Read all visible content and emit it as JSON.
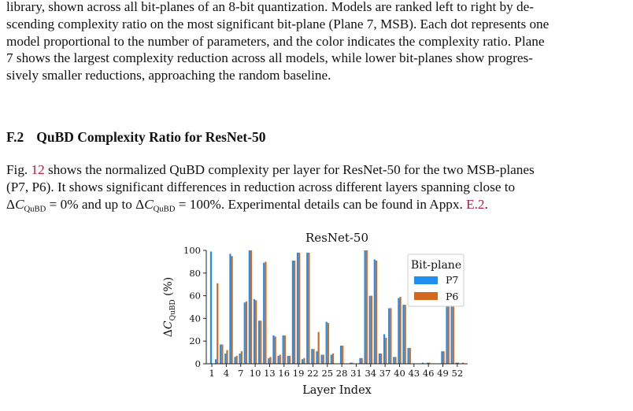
{
  "paper": {
    "para1_lines": [
      "library, shown across all bit-planes of an 8-bit quantization. Models are ranked left to right by de-",
      "scending complexity ratio on the most significant bit-plane (Plane 7, MSB). Each dot represents one",
      "model proportional to the number of parameters, and the color indicates the complexity ratio. Plane",
      "7 shows the largest complexity reduction across all models, while lower bit-planes show progres-",
      "sively smaller reductions, approaching the random baseline."
    ],
    "section_number": "F.2",
    "section_title": "QuBD Complexity Ratio for ResNet-50",
    "para2": {
      "line1_pre": "Fig. ",
      "fig_ref": "12",
      "line1_post": " shows the normalized QuBD complexity per layer for ResNet-50 for the two MSB-planes",
      "line2": "(P7, P6).  It shows significant differences in reduction across different layers spanning close to",
      "delta": "Δ",
      "c_symbol": "C",
      "sub": "QuBD",
      "eq1": " = 0% and up to ",
      "eq2": " = 100%. Experimental details can be found in Appx. ",
      "appx_ref": "E.2",
      "end": "."
    }
  },
  "chart_data": {
    "type": "bar",
    "title": "ResNet-50",
    "xlabel": "Layer Index",
    "ylabel_prefix": "Δ",
    "ylabel_symbol": "C",
    "ylabel_sub": "QuBD",
    "ylabel_suffix": " (%)",
    "ylim": [
      0,
      100
    ],
    "yticks": [
      0,
      20,
      40,
      60,
      80,
      100
    ],
    "xticks": [
      1,
      4,
      7,
      10,
      13,
      16,
      19,
      22,
      25,
      28,
      31,
      34,
      37,
      40,
      43,
      46,
      49,
      52
    ],
    "categories": [
      1,
      2,
      3,
      4,
      5,
      6,
      7,
      8,
      9,
      10,
      11,
      12,
      13,
      14,
      15,
      16,
      17,
      18,
      19,
      20,
      21,
      22,
      23,
      24,
      25,
      26,
      27,
      28,
      29,
      30,
      31,
      32,
      33,
      34,
      35,
      36,
      37,
      38,
      39,
      40,
      41,
      42,
      43,
      44,
      45,
      46,
      47,
      48,
      49,
      50,
      51,
      52,
      53
    ],
    "series": [
      {
        "name": "P7",
        "color": "#1f8ef1",
        "values": [
          99,
          4,
          17,
          9,
          97,
          6,
          9,
          54,
          100,
          57,
          38,
          89,
          5,
          25,
          7,
          25,
          7,
          91,
          98,
          4,
          98,
          13,
          11,
          8,
          37,
          8,
          0,
          16,
          0,
          1,
          0,
          5,
          100,
          60,
          92,
          9,
          26,
          49,
          6,
          58,
          52,
          14,
          0,
          0,
          1,
          1,
          0,
          0,
          11,
          93,
          95,
          1,
          0
        ]
      },
      {
        "name": "P6",
        "color": "#d2691e",
        "values": [
          0,
          71,
          17,
          12,
          95,
          7,
          11,
          55,
          100,
          56,
          38,
          90,
          6,
          24,
          8,
          25,
          7,
          91,
          98,
          5,
          98,
          13,
          28,
          8,
          36,
          9,
          0,
          16,
          0,
          1,
          0,
          5,
          100,
          60,
          91,
          9,
          23,
          49,
          6,
          59,
          52,
          14,
          0,
          0,
          0,
          1,
          0,
          0,
          11,
          93,
          96,
          1,
          1
        ]
      }
    ],
    "legend": {
      "title": "Bit-plane",
      "placement": "top-right"
    },
    "grid": false
  }
}
